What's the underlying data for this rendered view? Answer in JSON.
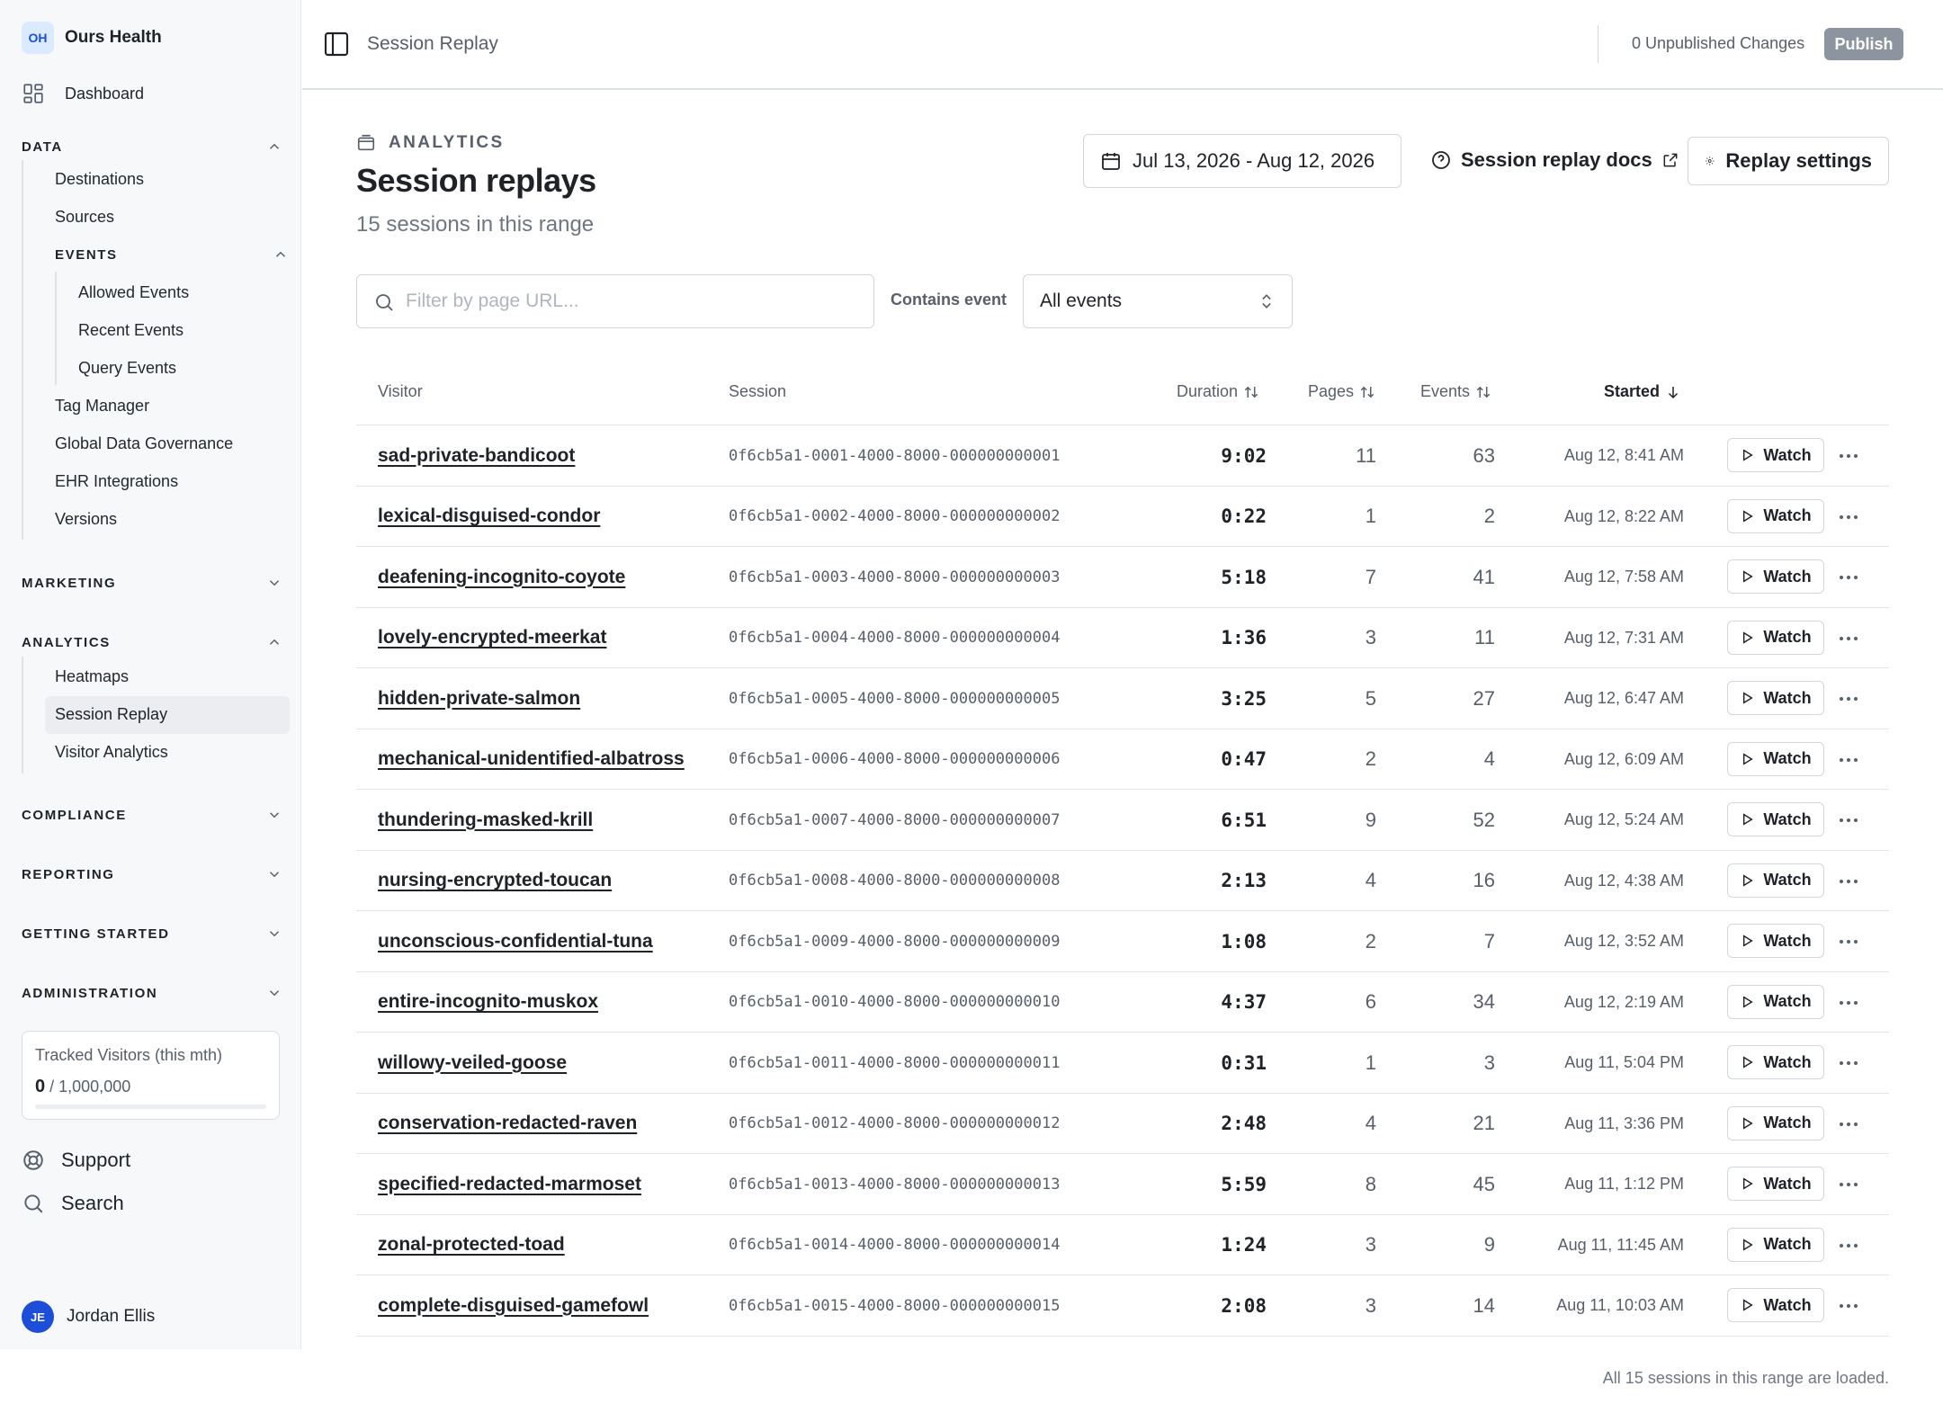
{
  "brand": {
    "initials": "OH",
    "name": "Ours Health"
  },
  "nav": {
    "dashboard": "Dashboard",
    "data": {
      "label": "DATA",
      "items": [
        "Destinations",
        "Sources"
      ],
      "events": {
        "label": "EVENTS",
        "items": [
          "Allowed Events",
          "Recent Events",
          "Query Events"
        ]
      },
      "items_after": [
        "Tag Manager",
        "Global Data Governance",
        "EHR Integrations",
        "Versions"
      ]
    },
    "marketing": "MARKETING",
    "analytics": {
      "label": "ANALYTICS",
      "items": [
        "Heatmaps",
        "Session Replay",
        "Visitor Analytics"
      ]
    },
    "compliance": "COMPLIANCE",
    "reporting": "REPORTING",
    "getting_started": "GETTING STARTED",
    "administration": "ADMINISTRATION"
  },
  "quota": {
    "label": "Tracked Visitors (this mth)",
    "used": "0",
    "limit": "/ 1,000,000",
    "fraction": 0
  },
  "utility": {
    "support": "Support",
    "search": "Search"
  },
  "user": {
    "initials": "JE",
    "name": "Jordan Ellis"
  },
  "topbar": {
    "title": "Session Replay",
    "changes": "0 Unpublished Changes",
    "publish": "Publish"
  },
  "header": {
    "eyebrow": "ANALYTICS",
    "title": "Session replays",
    "subtitle": "15 sessions in this range",
    "date_range": "Jul 13, 2026 - Aug 12, 2026",
    "docs": "Session replay docs",
    "settings": "Replay settings"
  },
  "filters": {
    "search_placeholder": "Filter by page URL...",
    "search_value": "",
    "contains_label": "Contains event",
    "event_value": "All events"
  },
  "table": {
    "columns": {
      "visitor": "Visitor",
      "session": "Session",
      "duration": "Duration",
      "pages": "Pages",
      "events": "Events",
      "started": "Started"
    },
    "watch_label": "Watch",
    "rows": [
      {
        "visitor": "sad-private-bandicoot",
        "session": "0f6cb5a1-0001-4000-8000-000000000001",
        "duration": "9:02",
        "pages": "11",
        "events": "63",
        "started": "Aug 12, 8:41 AM"
      },
      {
        "visitor": "lexical-disguised-condor",
        "session": "0f6cb5a1-0002-4000-8000-000000000002",
        "duration": "0:22",
        "pages": "1",
        "events": "2",
        "started": "Aug 12, 8:22 AM"
      },
      {
        "visitor": "deafening-incognito-coyote",
        "session": "0f6cb5a1-0003-4000-8000-000000000003",
        "duration": "5:18",
        "pages": "7",
        "events": "41",
        "started": "Aug 12, 7:58 AM"
      },
      {
        "visitor": "lovely-encrypted-meerkat",
        "session": "0f6cb5a1-0004-4000-8000-000000000004",
        "duration": "1:36",
        "pages": "3",
        "events": "11",
        "started": "Aug 12, 7:31 AM"
      },
      {
        "visitor": "hidden-private-salmon",
        "session": "0f6cb5a1-0005-4000-8000-000000000005",
        "duration": "3:25",
        "pages": "5",
        "events": "27",
        "started": "Aug 12, 6:47 AM"
      },
      {
        "visitor": "mechanical-unidentified-albatross",
        "session": "0f6cb5a1-0006-4000-8000-000000000006",
        "duration": "0:47",
        "pages": "2",
        "events": "4",
        "started": "Aug 12, 6:09 AM"
      },
      {
        "visitor": "thundering-masked-krill",
        "session": "0f6cb5a1-0007-4000-8000-000000000007",
        "duration": "6:51",
        "pages": "9",
        "events": "52",
        "started": "Aug 12, 5:24 AM"
      },
      {
        "visitor": "nursing-encrypted-toucan",
        "session": "0f6cb5a1-0008-4000-8000-000000000008",
        "duration": "2:13",
        "pages": "4",
        "events": "16",
        "started": "Aug 12, 4:38 AM"
      },
      {
        "visitor": "unconscious-confidential-tuna",
        "session": "0f6cb5a1-0009-4000-8000-000000000009",
        "duration": "1:08",
        "pages": "2",
        "events": "7",
        "started": "Aug 12, 3:52 AM"
      },
      {
        "visitor": "entire-incognito-muskox",
        "session": "0f6cb5a1-0010-4000-8000-000000000010",
        "duration": "4:37",
        "pages": "6",
        "events": "34",
        "started": "Aug 12, 2:19 AM"
      },
      {
        "visitor": "willowy-veiled-goose",
        "session": "0f6cb5a1-0011-4000-8000-000000000011",
        "duration": "0:31",
        "pages": "1",
        "events": "3",
        "started": "Aug 11, 5:04 PM"
      },
      {
        "visitor": "conservation-redacted-raven",
        "session": "0f6cb5a1-0012-4000-8000-000000000012",
        "duration": "2:48",
        "pages": "4",
        "events": "21",
        "started": "Aug 11, 3:36 PM"
      },
      {
        "visitor": "specified-redacted-marmoset",
        "session": "0f6cb5a1-0013-4000-8000-000000000013",
        "duration": "5:59",
        "pages": "8",
        "events": "45",
        "started": "Aug 11, 1:12 PM"
      },
      {
        "visitor": "zonal-protected-toad",
        "session": "0f6cb5a1-0014-4000-8000-000000000014",
        "duration": "1:24",
        "pages": "3",
        "events": "9",
        "started": "Aug 11, 11:45 AM"
      },
      {
        "visitor": "complete-disguised-gamefowl",
        "session": "0f6cb5a1-0015-4000-8000-000000000015",
        "duration": "2:08",
        "pages": "3",
        "events": "14",
        "started": "Aug 11, 10:03 AM"
      }
    ]
  },
  "footer": "All 15 sessions in this range are loaded.",
  "colors": {
    "accent": "#2563eb",
    "sidebar_bg": "#f6f8fa",
    "publish_bg": "#8c959f",
    "brand_badge": "#dbeafe",
    "avatar": "#1d4ed8"
  },
  "icons": [
    "grid-icon",
    "chevron-up-icon",
    "chevron-down-icon",
    "lifebuoy-icon",
    "search-icon",
    "sidebar-toggle-icon",
    "calendar-icon",
    "help-circle-icon",
    "external-link-icon",
    "gear-icon",
    "sort-icon",
    "arrow-down-icon",
    "play-icon",
    "more-icon",
    "up-down-icon"
  ]
}
